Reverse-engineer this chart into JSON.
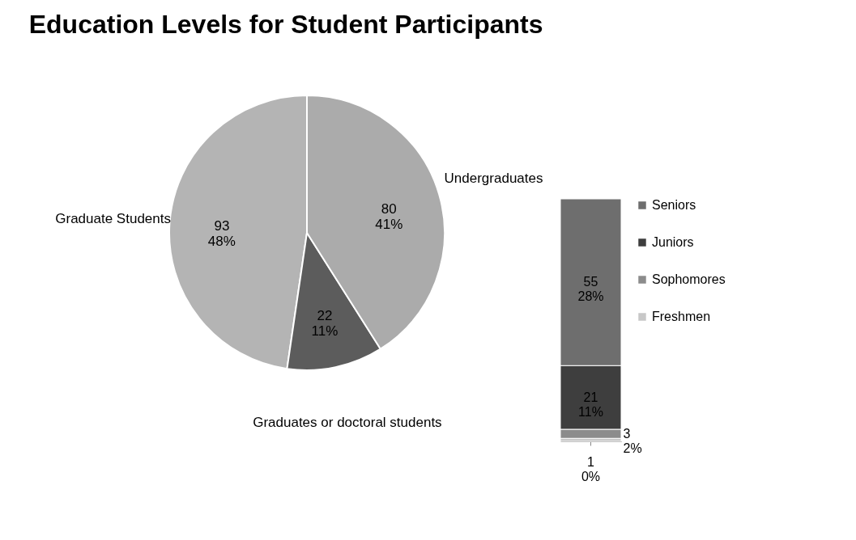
{
  "chart_data": [
    {
      "type": "pie",
      "title": "Education Levels for Student Participants",
      "categories": [
        "Graduate Students",
        "Graduates or doctoral students",
        "Undergraduates"
      ],
      "values": [
        93,
        22,
        80
      ],
      "colors": [
        "#b4b4b4",
        "#5c5c5c",
        "#ababab"
      ],
      "value_labels": [
        "93\n48%",
        "22\n11%",
        "80\n41%"
      ]
    },
    {
      "type": "bar",
      "stacked": true,
      "categories": [
        null
      ],
      "legend": "right",
      "series": [
        {
          "name": "Freshmen",
          "color": "#c8c8c8",
          "values": [
            1
          ],
          "value_labels": [
            "1\n0%"
          ]
        },
        {
          "name": "Sophomores",
          "color": "#8c8c8c",
          "values": [
            3
          ],
          "value_labels": [
            "3\n2%"
          ]
        },
        {
          "name": "Juniors",
          "color": "#3e3e3e",
          "values": [
            21
          ],
          "value_labels": [
            "21\n11%"
          ]
        },
        {
          "name": "Seniors",
          "color": "#6e6e6e",
          "values": [
            55
          ],
          "value_labels": [
            "55\n28%"
          ]
        }
      ]
    }
  ]
}
